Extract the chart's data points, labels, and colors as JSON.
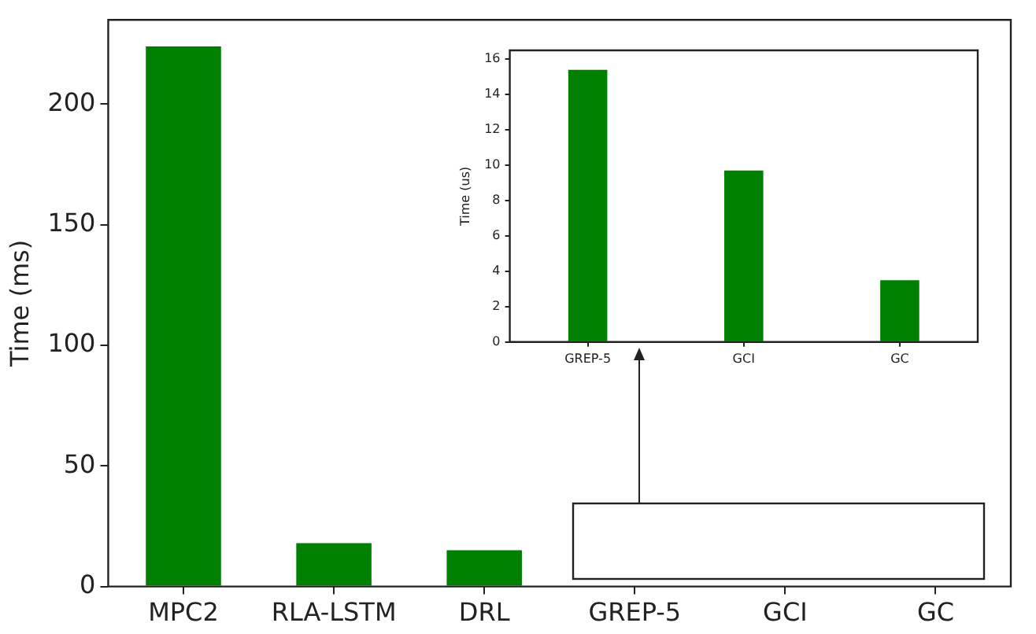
{
  "chart_data": [
    {
      "type": "bar",
      "categories": [
        "MPC2",
        "RLA-LSTM",
        "DRL",
        "GREP-5",
        "GCI",
        "GC"
      ],
      "values": [
        224,
        18,
        15,
        null,
        null,
        null
      ],
      "color": "#008000",
      "ylabel": "Time (ms)",
      "ylim": [
        0,
        235
      ],
      "yticks": [
        0,
        50,
        100,
        150,
        200
      ]
    },
    {
      "type": "bar",
      "categories": [
        "GREP-5",
        "GCI",
        "GC"
      ],
      "values": [
        15.4,
        9.7,
        3.5
      ],
      "color": "#008000",
      "ylabel": "Time (us)",
      "ylim": [
        0,
        16.5
      ],
      "yticks": [
        0,
        2,
        4,
        6,
        8,
        10,
        12,
        14,
        16
      ]
    }
  ]
}
